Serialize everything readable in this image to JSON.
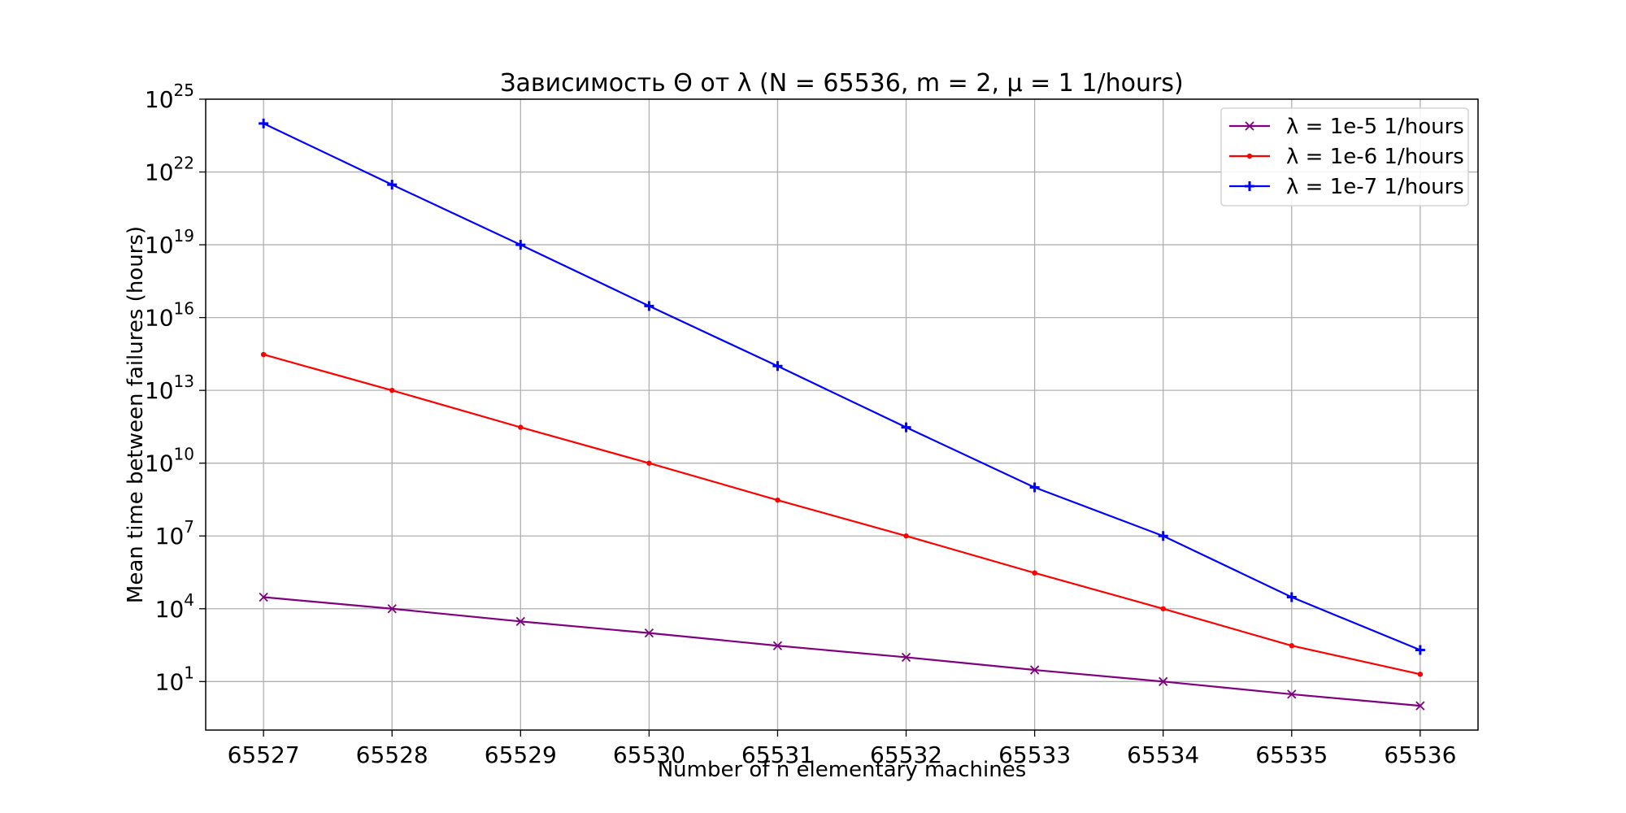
{
  "chart_data": {
    "type": "line",
    "title": "Зависимость Θ от λ (N = 65536, m = 2, μ = 1 1/hours)",
    "xlabel": "Number of n elementary machines",
    "ylabel": "Mean time between failures (hours)",
    "x": [
      65527,
      65528,
      65529,
      65530,
      65531,
      65532,
      65533,
      65534,
      65535,
      65536
    ],
    "x_tick_labels": [
      "65527",
      "65528",
      "65529",
      "65530",
      "65531",
      "65532",
      "65533",
      "65534",
      "65535",
      "65536"
    ],
    "yscale": "log",
    "ylim": [
      0.1,
      1e+25
    ],
    "y_ticks": [
      {
        "base": "10",
        "exp": "1"
      },
      {
        "base": "10",
        "exp": "4"
      },
      {
        "base": "10",
        "exp": "7"
      },
      {
        "base": "10",
        "exp": "10"
      },
      {
        "base": "10",
        "exp": "13"
      },
      {
        "base": "10",
        "exp": "16"
      },
      {
        "base": "10",
        "exp": "19"
      },
      {
        "base": "10",
        "exp": "22"
      },
      {
        "base": "10",
        "exp": "25"
      }
    ],
    "grid": true,
    "legend_position": "top-right",
    "series": [
      {
        "name": "λ = 1e-5 1/hours",
        "color": "#800080",
        "marker": "x",
        "values": [
          30000,
          10000,
          3000,
          1000,
          300,
          100,
          30,
          10,
          3,
          1
        ]
      },
      {
        "name": "λ = 1e-6 1/hours",
        "color": "#ff0000",
        "marker": "dot",
        "values": [
          300000000000000.0,
          10000000000000.0,
          300000000000.0,
          10000000000.0,
          300000000.0,
          10000000.0,
          300000.0,
          10000.0,
          300,
          20
        ]
      },
      {
        "name": "λ = 1e-7 1/hours",
        "color": "#0000ff",
        "marker": "plus",
        "values": [
          1e+24,
          3e+21,
          1e+19,
          3e+16,
          100000000000000.0,
          300000000000.0,
          1000000000.0,
          10000000.0,
          30000.0,
          200
        ]
      }
    ]
  }
}
